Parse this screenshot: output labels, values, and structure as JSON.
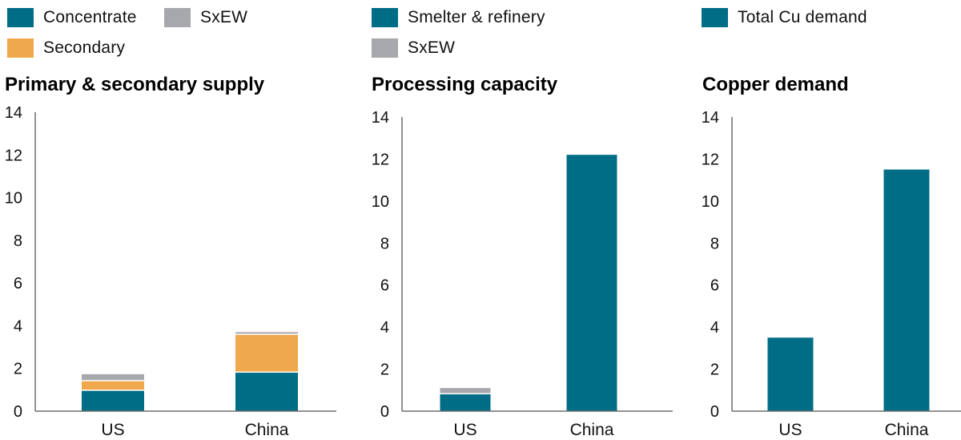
{
  "colors": {
    "concentrate": "#006d87",
    "secondary": "#f0a84c",
    "sxew": "#a7a8ac",
    "smelter": "#006d87",
    "demand": "#006d87",
    "axis": "#6e6e6e"
  },
  "chart_data": [
    {
      "type": "bar",
      "stacked": true,
      "title": "Primary & secondary supply",
      "legend": [
        "Concentrate",
        "SxEW",
        "Secondary"
      ],
      "legend_placement": "top",
      "categories": [
        "US",
        "China"
      ],
      "series": [
        {
          "name": "Concentrate",
          "color_key": "concentrate",
          "values": [
            0.95,
            1.8
          ]
        },
        {
          "name": "Secondary",
          "color_key": "secondary",
          "values": [
            0.45,
            1.77
          ]
        },
        {
          "name": "SxEW",
          "color_key": "sxew",
          "values": [
            0.33,
            0.13
          ]
        }
      ],
      "xlabel": "",
      "ylabel": "",
      "ylim": [
        0,
        14
      ],
      "yticks": [
        "0",
        "2",
        "4",
        "6",
        "8",
        "10",
        "12",
        "14"
      ],
      "grid": false
    },
    {
      "type": "bar",
      "stacked": true,
      "title": "Processing capacity",
      "legend": [
        "Smelter & refinery",
        "SxEW"
      ],
      "legend_placement": "top",
      "categories": [
        "US",
        "China"
      ],
      "series": [
        {
          "name": "Smelter & refinery",
          "color_key": "smelter",
          "values": [
            0.8,
            12.2
          ]
        },
        {
          "name": "SxEW",
          "color_key": "sxew",
          "values": [
            0.3,
            0.05
          ]
        }
      ],
      "xlabel": "",
      "ylabel": "",
      "ylim": [
        0,
        14
      ],
      "yticks": [
        "0",
        "2",
        "4",
        "6",
        "8",
        "10",
        "12",
        "14"
      ],
      "grid": false
    },
    {
      "type": "bar",
      "stacked": false,
      "title": "Copper demand",
      "legend": [
        "Total Cu demand"
      ],
      "legend_placement": "top",
      "categories": [
        "US",
        "China"
      ],
      "series": [
        {
          "name": "Total Cu demand",
          "color_key": "demand",
          "values": [
            3.5,
            11.5
          ]
        }
      ],
      "xlabel": "",
      "ylabel": "",
      "ylim": [
        0,
        14
      ],
      "yticks": [
        "0",
        "2",
        "4",
        "6",
        "8",
        "10",
        "12",
        "14"
      ],
      "grid": false
    }
  ]
}
